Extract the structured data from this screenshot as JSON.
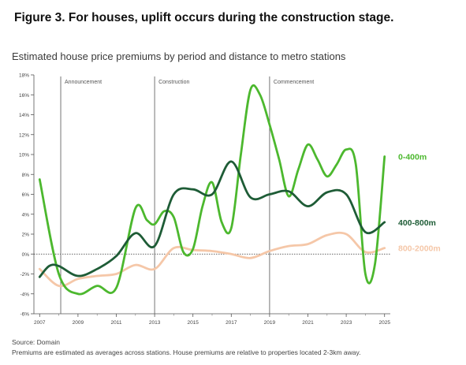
{
  "figure_title": "Figure 3. For houses, uplift occurs during the construction stage.",
  "subtitle": "Estimated house price premiums by period and distance to metro stations",
  "source": "Source: Domain",
  "note": "Premiums are estimated as averages across stations. House premiums are relative to properties located 2-3km away.",
  "chart_data": {
    "type": "line",
    "title": "Estimated house price premiums by period and distance to metro stations",
    "xlim": [
      2006.7,
      2025.3
    ],
    "ylim": [
      -6,
      18
    ],
    "y_ticks": [
      -6,
      -4,
      -2,
      0,
      2,
      4,
      6,
      8,
      10,
      12,
      14,
      16,
      18
    ],
    "y_tick_labels": [
      "-6%",
      "-4%",
      "-2%",
      "0%",
      "2%",
      "4%",
      "6%",
      "8%",
      "10%",
      "12%",
      "14%",
      "16%",
      "18%"
    ],
    "x_ticks": [
      2007,
      2009,
      2011,
      2013,
      2015,
      2017,
      2019,
      2021,
      2023,
      2025
    ],
    "x_tick_labels": [
      "2007",
      "2009",
      "2011",
      "2013",
      "2015",
      "2017",
      "2019",
      "2021",
      "2023",
      "2025"
    ],
    "grid": false,
    "periods": [
      {
        "label": "Announcement",
        "x": 2008.1
      },
      {
        "label": "Construction",
        "x": 2013.0
      },
      {
        "label": "Commencement",
        "x": 2019.0
      }
    ],
    "series": [
      {
        "name": "0-400m",
        "color": "#4cb82e",
        "x": [
          2007,
          2008,
          2009,
          2010,
          2011,
          2012,
          2012.6,
          2013,
          2013.5,
          2014,
          2014.5,
          2015,
          2015.5,
          2016,
          2016.5,
          2017,
          2017.5,
          2018,
          2018.5,
          2019,
          2019.5,
          2020,
          2020.5,
          2021,
          2021.5,
          2022,
          2022.5,
          2023,
          2023.5,
          2024,
          2024.5,
          2025
        ],
        "values": [
          7.5,
          -2.0,
          -4.0,
          -3.2,
          -3.4,
          4.6,
          3.4,
          3.0,
          4.3,
          3.7,
          0.2,
          0.5,
          4.8,
          7.2,
          3.2,
          2.6,
          10.0,
          16.5,
          16.0,
          13.0,
          9.5,
          5.8,
          8.5,
          11.0,
          9.5,
          7.8,
          9.0,
          10.5,
          9.0,
          -2.0,
          -1.0,
          9.8
        ]
      },
      {
        "name": "400-800m",
        "color": "#1e5c36",
        "x": [
          2007,
          2007.5,
          2008,
          2009,
          2010,
          2011,
          2012,
          2013,
          2014,
          2015,
          2016,
          2017,
          2018,
          2019,
          2020,
          2021,
          2022,
          2023,
          2024,
          2025
        ],
        "values": [
          -2.3,
          -1.2,
          -1.2,
          -2.2,
          -1.5,
          -0.2,
          2.1,
          0.8,
          6.0,
          6.5,
          6.0,
          9.3,
          5.7,
          6.0,
          6.3,
          4.8,
          6.2,
          6.0,
          2.2,
          3.2
        ]
      },
      {
        "name": "800-2000m",
        "color": "#f5c7a8",
        "x": [
          2007,
          2008,
          2009,
          2010,
          2011,
          2012,
          2013,
          2014,
          2015,
          2016,
          2017,
          2018,
          2019,
          2020,
          2021,
          2022,
          2023,
          2024,
          2025
        ],
        "values": [
          -1.5,
          -3.2,
          -2.5,
          -2.2,
          -2.0,
          -1.1,
          -1.5,
          0.6,
          0.4,
          0.3,
          0.0,
          -0.4,
          0.3,
          0.8,
          1.0,
          1.9,
          2.0,
          0.2,
          0.6
        ]
      }
    ]
  }
}
